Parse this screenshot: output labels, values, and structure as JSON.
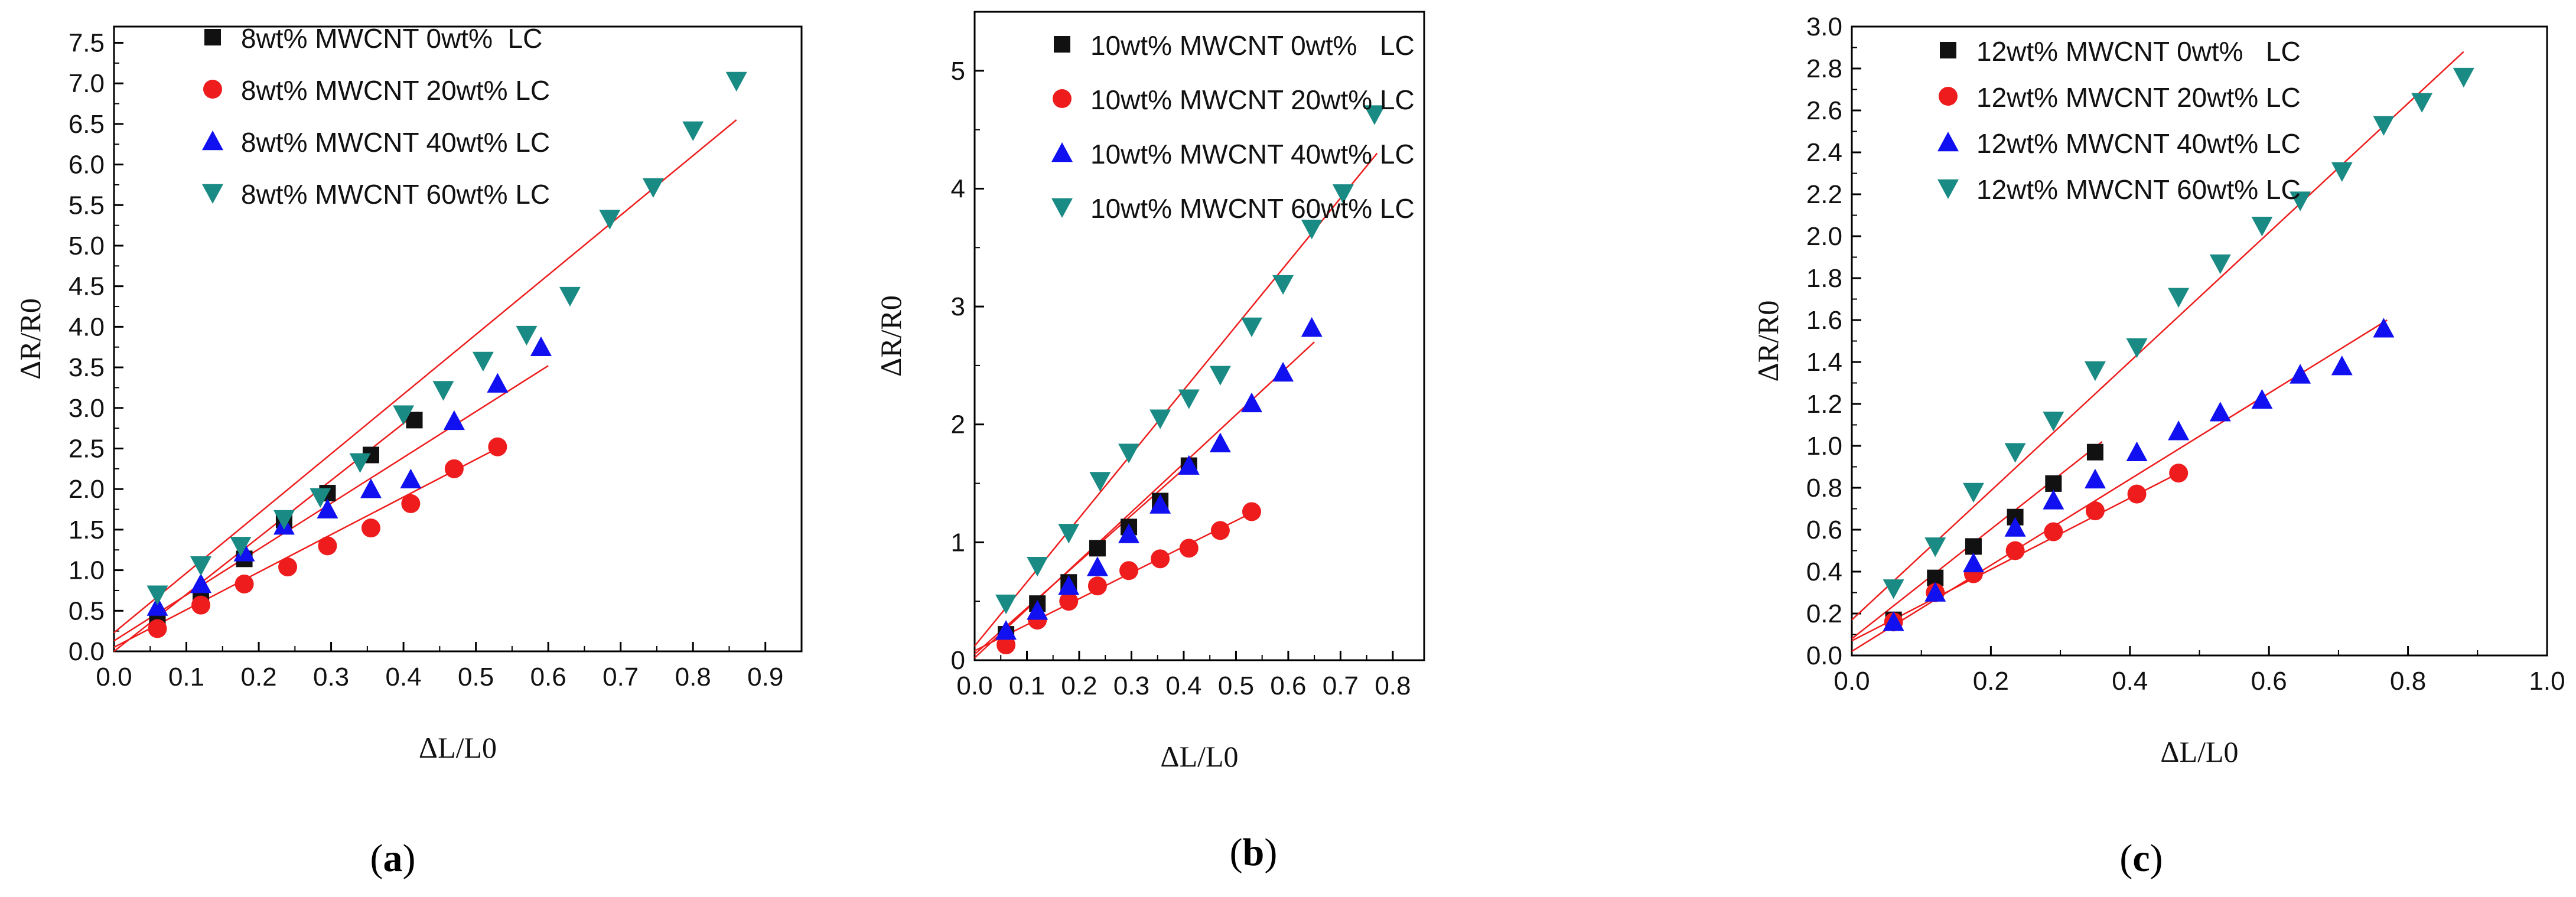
{
  "chart_data": [
    {
      "type": "scatter",
      "panel_label": "(a)",
      "panel_letter": "a",
      "xlabel": "ΔL/L0",
      "ylabel": "ΔR/R0",
      "xlim": [
        0.0,
        0.95
      ],
      "ylim": [
        0.0,
        7.7
      ],
      "xticks": [
        0.0,
        0.1,
        0.2,
        0.3,
        0.4,
        0.5,
        0.6,
        0.7,
        0.8,
        0.9
      ],
      "xtick_labels": [
        "0.0",
        "0.1",
        "0.2",
        "0.3",
        "0.4",
        "0.5",
        "0.6",
        "0.7",
        "0.8",
        "0.9"
      ],
      "yticks": [
        0.0,
        0.5,
        1.0,
        1.5,
        2.0,
        2.5,
        3.0,
        3.5,
        4.0,
        4.5,
        5.0,
        5.5,
        6.0,
        6.5,
        7.0,
        7.5
      ],
      "ytick_labels": [
        "0.0",
        "0.5",
        "1.0",
        "1.5",
        "2.0",
        "2.5",
        "3.0",
        "3.5",
        "4.0",
        "4.5",
        "5.0",
        "5.5",
        "6.0",
        "6.5",
        "7.0",
        "7.5"
      ],
      "legend_position": "top-left",
      "series": [
        {
          "name": "8wt% MWCNT 0wt%  LC",
          "marker": "square",
          "color": "#111111",
          "x": [
            0.06,
            0.12,
            0.18,
            0.235,
            0.295,
            0.355,
            0.415
          ],
          "y": [
            0.38,
            0.65,
            1.14,
            1.62,
            1.95,
            2.42,
            2.85
          ],
          "fit": [
            [
              0.0,
              0.0
            ],
            [
              0.42,
              2.95
            ]
          ]
        },
        {
          "name": "8wt% MWCNT 20wt% LC",
          "marker": "circle",
          "color": "#ee1c1c",
          "x": [
            0.06,
            0.12,
            0.18,
            0.24,
            0.295,
            0.355,
            0.41,
            0.47,
            0.53
          ],
          "y": [
            0.28,
            0.57,
            0.83,
            1.04,
            1.3,
            1.52,
            1.82,
            2.25,
            2.52
          ],
          "fit": [
            [
              0.0,
              0.05
            ],
            [
              0.54,
              2.55
            ]
          ]
        },
        {
          "name": "8wt% MWCNT 40wt% LC",
          "marker": "triangle-up",
          "color": "#1010f0",
          "x": [
            0.06,
            0.12,
            0.18,
            0.235,
            0.295,
            0.355,
            0.41,
            0.47,
            0.53,
            0.59
          ],
          "y": [
            0.55,
            0.83,
            1.22,
            1.55,
            1.75,
            2.0,
            2.12,
            2.84,
            3.3,
            3.75
          ],
          "fit": [
            [
              0.0,
              0.13
            ],
            [
              0.6,
              3.52
            ]
          ]
        },
        {
          "name": "8wt% MWCNT 60wt% LC",
          "marker": "triangle-down",
          "color": "#1a8a84",
          "x": [
            0.06,
            0.12,
            0.175,
            0.235,
            0.285,
            0.34,
            0.4,
            0.455,
            0.51,
            0.57,
            0.63,
            0.685,
            0.745,
            0.8,
            0.86
          ],
          "y": [
            0.7,
            1.06,
            1.3,
            1.63,
            1.9,
            2.33,
            2.92,
            3.22,
            3.58,
            3.9,
            4.38,
            5.33,
            5.72,
            6.42,
            7.03
          ],
          "fit": [
            [
              0.0,
              0.23
            ],
            [
              0.86,
              6.55
            ]
          ]
        }
      ]
    },
    {
      "type": "scatter",
      "panel_label": "(b)",
      "panel_letter": "b",
      "xlabel": "ΔL/L0",
      "ylabel": "ΔR/R0",
      "xlim": [
        0.0,
        0.86
      ],
      "ylim": [
        0.0,
        5.5
      ],
      "xticks": [
        0.0,
        0.1,
        0.2,
        0.3,
        0.4,
        0.5,
        0.6,
        0.7,
        0.8
      ],
      "xtick_labels": [
        "0.0",
        "0.1",
        "0.2",
        "0.3",
        "0.4",
        "0.5",
        "0.6",
        "0.7",
        "0.8"
      ],
      "yticks": [
        0,
        1,
        2,
        3,
        4,
        5
      ],
      "ytick_labels": [
        "0",
        "1",
        "2",
        "3",
        "4",
        "5"
      ],
      "legend_position": "top-left",
      "series": [
        {
          "name": "10wt% MWCNT 0wt%   LC",
          "marker": "square",
          "color": "#111111",
          "x": [
            0.06,
            0.12,
            0.18,
            0.235,
            0.295,
            0.355,
            0.41
          ],
          "y": [
            0.22,
            0.48,
            0.66,
            0.95,
            1.13,
            1.35,
            1.65
          ],
          "fit": [
            [
              0.0,
              0.05
            ],
            [
              0.42,
              1.7
            ]
          ]
        },
        {
          "name": "10wt% MWCNT 20wt% LC",
          "marker": "circle",
          "color": "#ee1c1c",
          "x": [
            0.06,
            0.12,
            0.18,
            0.235,
            0.295,
            0.355,
            0.41,
            0.47,
            0.53
          ],
          "y": [
            0.13,
            0.34,
            0.5,
            0.63,
            0.76,
            0.86,
            0.95,
            1.1,
            1.26
          ],
          "fit": [
            [
              0.0,
              0.08
            ],
            [
              0.53,
              1.25
            ]
          ]
        },
        {
          "name": "10wt% MWCNT 40wt% LC",
          "marker": "triangle-up",
          "color": "#1010f0",
          "x": [
            0.06,
            0.12,
            0.18,
            0.235,
            0.295,
            0.355,
            0.41,
            0.47,
            0.53,
            0.59,
            0.645
          ],
          "y": [
            0.25,
            0.42,
            0.63,
            0.79,
            1.07,
            1.32,
            1.65,
            1.84,
            2.18,
            2.44,
            2.82
          ],
          "fit": [
            [
              0.0,
              0.02
            ],
            [
              0.65,
              2.7
            ]
          ]
        },
        {
          "name": "10wt% MWCNT 60wt% LC",
          "marker": "triangle-down",
          "color": "#1a8a84",
          "x": [
            0.06,
            0.12,
            0.18,
            0.24,
            0.295,
            0.355,
            0.41,
            0.47,
            0.53,
            0.59,
            0.645,
            0.705,
            0.765
          ],
          "y": [
            0.48,
            0.8,
            1.08,
            1.52,
            1.76,
            2.05,
            2.22,
            2.42,
            2.83,
            3.19,
            3.66,
            3.96,
            4.63
          ],
          "fit": [
            [
              0.0,
              0.12
            ],
            [
              0.77,
              4.3
            ]
          ]
        }
      ]
    },
    {
      "type": "scatter",
      "panel_label": "(c)",
      "panel_letter": "c",
      "xlabel": "ΔL/L0",
      "ylabel": "ΔR/R0",
      "xlim": [
        0.0,
        1.0
      ],
      "ylim": [
        0.0,
        3.0
      ],
      "xticks": [
        0.0,
        0.2,
        0.4,
        0.6,
        0.8,
        1.0
      ],
      "xtick_labels": [
        "0.0",
        "0.2",
        "0.4",
        "0.6",
        "0.8",
        "1.0"
      ],
      "yticks": [
        0.0,
        0.2,
        0.4,
        0.6,
        0.8,
        1.0,
        1.2,
        1.4,
        1.6,
        1.8,
        2.0,
        2.2,
        2.4,
        2.6,
        2.8,
        3.0
      ],
      "ytick_labels": [
        "0.0",
        "0.2",
        "0.4",
        "0.6",
        "0.8",
        "1.0",
        "1.2",
        "1.4",
        "1.6",
        "1.8",
        "2.0",
        "2.2",
        "2.4",
        "2.6",
        "2.8",
        "3.0"
      ],
      "legend_position": "top-left",
      "series": [
        {
          "name": "12wt% MWCNT 0wt%   LC",
          "marker": "square",
          "color": "#111111",
          "x": [
            0.06,
            0.12,
            0.175,
            0.235,
            0.29,
            0.35
          ],
          "y": [
            0.17,
            0.37,
            0.52,
            0.66,
            0.82,
            0.97
          ],
          "fit": [
            [
              0.0,
              0.08
            ],
            [
              0.36,
              1.02
            ]
          ]
        },
        {
          "name": "12wt% MWCNT 20wt% LC",
          "marker": "circle",
          "color": "#ee1c1c",
          "x": [
            0.06,
            0.12,
            0.175,
            0.235,
            0.29,
            0.35,
            0.41,
            0.47
          ],
          "y": [
            0.16,
            0.3,
            0.39,
            0.5,
            0.59,
            0.69,
            0.77,
            0.87
          ],
          "fit": [
            [
              0.0,
              0.07
            ],
            [
              0.47,
              0.87
            ]
          ]
        },
        {
          "name": "12wt% MWCNT 40wt% LC",
          "marker": "triangle-up",
          "color": "#1010f0",
          "x": [
            0.06,
            0.12,
            0.175,
            0.235,
            0.29,
            0.35,
            0.41,
            0.47,
            0.53,
            0.59,
            0.645,
            0.705,
            0.765
          ],
          "y": [
            0.16,
            0.3,
            0.44,
            0.61,
            0.74,
            0.84,
            0.97,
            1.07,
            1.16,
            1.22,
            1.34,
            1.38,
            1.56
          ],
          "fit": [
            [
              0.0,
              0.02
            ],
            [
              0.77,
              1.6
            ]
          ]
        },
        {
          "name": "12wt% MWCNT 60wt% LC",
          "marker": "triangle-down",
          "color": "#1a8a84",
          "x": [
            0.06,
            0.12,
            0.175,
            0.235,
            0.29,
            0.35,
            0.41,
            0.47,
            0.53,
            0.59,
            0.645,
            0.705,
            0.765,
            0.82,
            0.88
          ],
          "y": [
            0.32,
            0.52,
            0.78,
            0.97,
            1.12,
            1.36,
            1.47,
            1.71,
            1.87,
            2.05,
            2.17,
            2.31,
            2.53,
            2.64,
            2.76
          ],
          "fit": [
            [
              0.0,
              0.17
            ],
            [
              0.88,
              2.88
            ]
          ]
        }
      ]
    }
  ]
}
